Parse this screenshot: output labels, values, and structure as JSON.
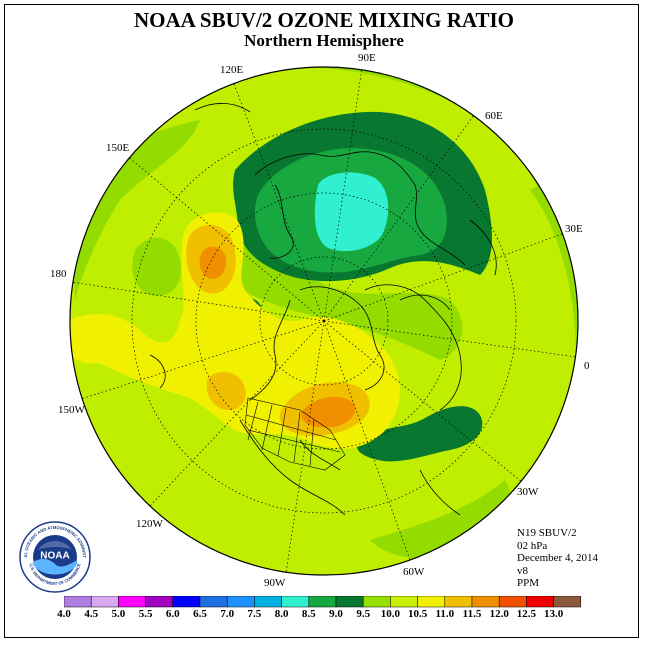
{
  "title": "NOAA SBUV/2 OZONE MIXING RATIO",
  "subtitle": "Northern Hemisphere",
  "longitude_labels": [
    "90E",
    "60E",
    "30E",
    "0",
    "30W",
    "60W",
    "90W",
    "120W",
    "150W",
    "180",
    "150E",
    "120E"
  ],
  "info": {
    "instrument": "N19 SBUV/2",
    "level": "02 hPa",
    "date": "December 4, 2014",
    "version": "v8",
    "units": "PPM"
  },
  "colorbar": {
    "ticks": [
      "4.0",
      "4.5",
      "5.0",
      "5.5",
      "6.0",
      "6.5",
      "7.0",
      "7.5",
      "8.0",
      "8.5",
      "9.0",
      "9.5",
      "10.0",
      "10.5",
      "11.0",
      "11.5",
      "12.0",
      "12.5",
      "13.0"
    ],
    "colors": [
      "#b07ee0",
      "#d8a8f0",
      "#ff00ff",
      "#a000c0",
      "#0000ff",
      "#1f6fe0",
      "#1e90ff",
      "#00b0e0",
      "#30f0d0",
      "#18a840",
      "#087830",
      "#94e000",
      "#c8f000",
      "#f0f000",
      "#f0c000",
      "#f09000",
      "#f05000",
      "#f00000",
      "#8b5a3c"
    ]
  },
  "map_colors": {
    "background": "#c0ee00",
    "ring_outer": "#a8e600",
    "yellow": "#f0f000",
    "gold": "#f0c000",
    "orange": "#f09000",
    "green_medium": "#94dc00",
    "green_dark": "#087830",
    "green": "#18a840",
    "cyan": "#30f0d0"
  },
  "logo": {
    "text": "NOAA",
    "ring_text_top": "NATIONAL OCEANIC AND ATMOSPHERIC ADMINISTRATION",
    "ring_text_bottom": "U.S. DEPARTMENT OF COMMERCE"
  }
}
